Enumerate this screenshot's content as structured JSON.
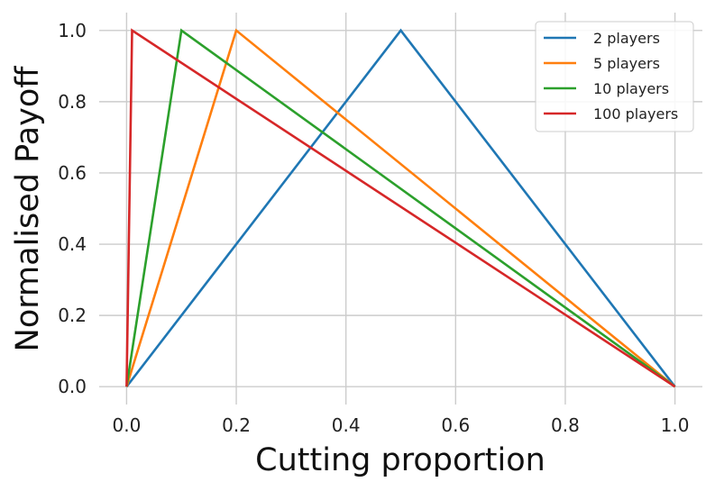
{
  "chart_data": {
    "type": "line",
    "title": "",
    "xlabel": "Cutting proportion",
    "ylabel": "Normalised Payoff",
    "xlim": [
      -0.05,
      1.05
    ],
    "ylim": [
      -0.05,
      1.05
    ],
    "xticks": [
      0.0,
      0.2,
      0.4,
      0.6,
      0.8,
      1.0
    ],
    "xtick_labels": [
      "0.0",
      "0.2",
      "0.4",
      "0.6",
      "0.8",
      "1.0"
    ],
    "yticks": [
      0.0,
      0.2,
      0.4,
      0.6,
      0.8,
      1.0
    ],
    "ytick_labels": [
      "0.0",
      "0.2",
      "0.4",
      "0.6",
      "0.8",
      "1.0"
    ],
    "grid": true,
    "legend_position": "top-right",
    "series": [
      {
        "name": "2 players",
        "color": "#1f77b4",
        "x": [
          0.0,
          0.5,
          1.0
        ],
        "y": [
          0.0,
          1.0,
          0.0
        ]
      },
      {
        "name": "5 players",
        "color": "#ff7f0e",
        "x": [
          0.0,
          0.2,
          1.0
        ],
        "y": [
          0.0,
          1.0,
          0.0
        ]
      },
      {
        "name": "10 players",
        "color": "#2ca02c",
        "x": [
          0.0,
          0.1,
          1.0
        ],
        "y": [
          0.0,
          1.0,
          0.0
        ]
      },
      {
        "name": "100 players",
        "color": "#d62728",
        "x": [
          0.0,
          0.01,
          1.0
        ],
        "y": [
          0.0,
          1.0,
          0.0
        ]
      }
    ]
  }
}
